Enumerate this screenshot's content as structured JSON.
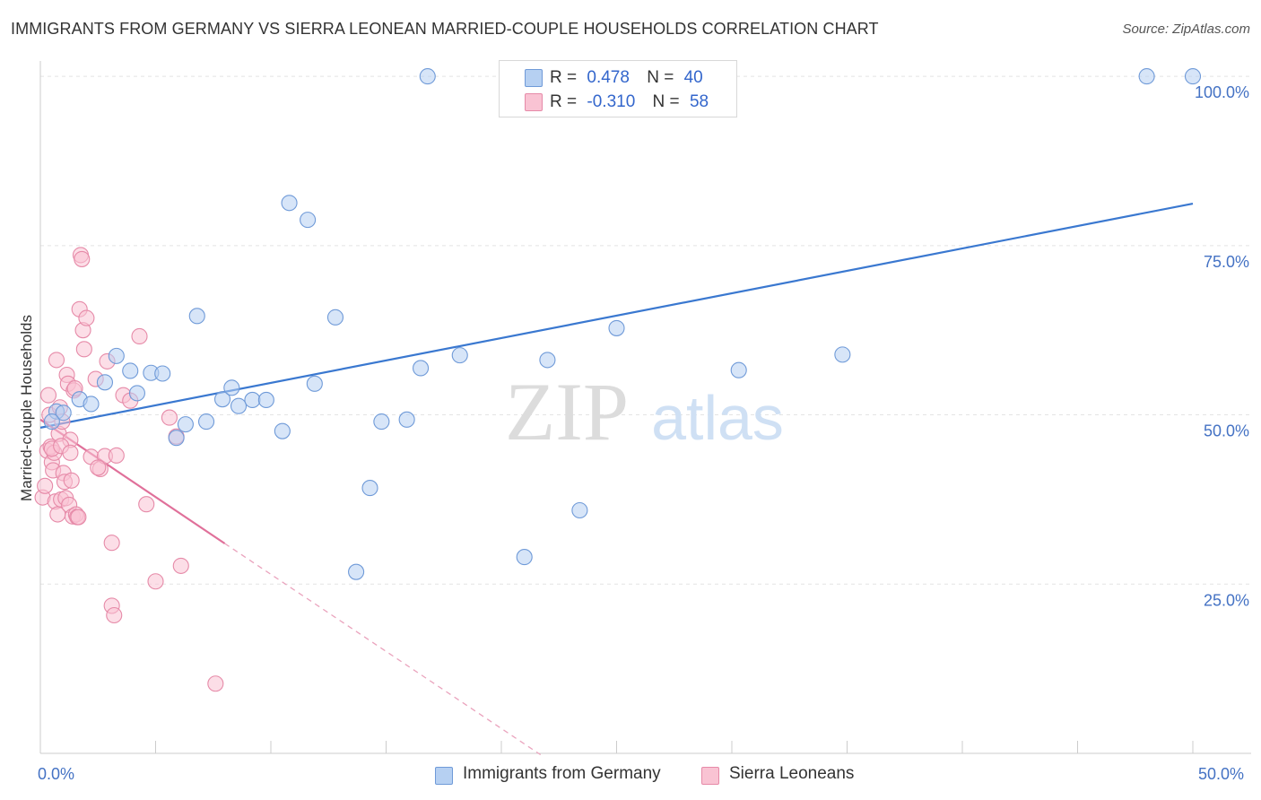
{
  "chart_data": {
    "type": "scatter",
    "title": "IMMIGRANTS FROM GERMANY VS SIERRA LEONEAN MARRIED-COUPLE HOUSEHOLDS CORRELATION CHART",
    "source": "Source: ZipAtlas.com",
    "xlabel": "",
    "ylabel": "Married-couple Households",
    "xlim": [
      0,
      50
    ],
    "ylim": [
      0,
      102
    ],
    "x_tick_labels": [
      "0.0%",
      "50.0%"
    ],
    "y_ticks": [
      25,
      50,
      75,
      100
    ],
    "y_tick_labels": [
      "25.0%",
      "50.0%",
      "75.0%",
      "100.0%"
    ],
    "watermark": {
      "zip": "ZIP",
      "atlas": "atlas"
    },
    "legend": {
      "rows": [
        {
          "r_label": "R =",
          "r_value": "0.478",
          "n_label": "N =",
          "n_value": "40"
        },
        {
          "r_label": "R =",
          "r_value": "-0.310",
          "n_label": "N =",
          "n_value": "58"
        }
      ]
    },
    "series": [
      {
        "name": "Immigrants from Germany",
        "color": "#6f9ad8",
        "fill": "#b6d0f2",
        "trend": {
          "x1": 0,
          "y1": 48.1,
          "x2": 50,
          "y2": 81.2
        },
        "points": [
          [
            0.7,
            50.5
          ],
          [
            1.0,
            50.3
          ],
          [
            1.7,
            52.3
          ],
          [
            2.2,
            51.6
          ],
          [
            2.8,
            54.8
          ],
          [
            3.3,
            58.7
          ],
          [
            3.9,
            56.5
          ],
          [
            4.2,
            53.2
          ],
          [
            4.8,
            56.2
          ],
          [
            5.3,
            56.1
          ],
          [
            5.9,
            46.6
          ],
          [
            6.3,
            48.6
          ],
          [
            6.8,
            64.6
          ],
          [
            7.2,
            49.0
          ],
          [
            7.9,
            52.3
          ],
          [
            8.3,
            54.0
          ],
          [
            8.6,
            51.3
          ],
          [
            9.2,
            52.2
          ],
          [
            9.8,
            52.2
          ],
          [
            10.5,
            47.6
          ],
          [
            10.8,
            81.3
          ],
          [
            11.6,
            78.8
          ],
          [
            11.9,
            54.6
          ],
          [
            12.8,
            64.4
          ],
          [
            13.7,
            26.8
          ],
          [
            14.3,
            39.2
          ],
          [
            14.8,
            49.0
          ],
          [
            15.9,
            49.3
          ],
          [
            16.5,
            56.9
          ],
          [
            16.8,
            100.0
          ],
          [
            18.2,
            58.8
          ],
          [
            21.0,
            29.0
          ],
          [
            22.0,
            58.1
          ],
          [
            23.4,
            35.9
          ],
          [
            25.0,
            62.8
          ],
          [
            30.3,
            56.6
          ],
          [
            34.8,
            58.9
          ],
          [
            48.0,
            100.0
          ],
          [
            50.0,
            100.0
          ],
          [
            0.5,
            49.0
          ]
        ]
      },
      {
        "name": "Sierra Leoneans",
        "color": "#e68aa8",
        "fill": "#f9c3d3",
        "trend": {
          "x1": 0,
          "y1": 49.3,
          "x2": 8.0,
          "y2": 31.0,
          "dash_x2": 21.7,
          "dash_y2": -0.2
        },
        "points": [
          [
            0.1,
            37.8
          ],
          [
            0.2,
            39.5
          ],
          [
            0.3,
            44.7
          ],
          [
            0.35,
            52.9
          ],
          [
            0.4,
            50.0
          ],
          [
            0.45,
            45.3
          ],
          [
            0.5,
            43.0
          ],
          [
            0.55,
            41.8
          ],
          [
            0.6,
            44.4
          ],
          [
            0.65,
            37.2
          ],
          [
            0.7,
            58.1
          ],
          [
            0.75,
            35.3
          ],
          [
            0.8,
            47.2
          ],
          [
            0.85,
            51.1
          ],
          [
            0.9,
            37.5
          ],
          [
            0.95,
            49.0
          ],
          [
            1.0,
            41.4
          ],
          [
            1.05,
            40.1
          ],
          [
            1.1,
            37.7
          ],
          [
            1.15,
            55.9
          ],
          [
            1.2,
            54.6
          ],
          [
            1.25,
            36.7
          ],
          [
            1.3,
            46.3
          ],
          [
            1.35,
            40.3
          ],
          [
            1.4,
            35.0
          ],
          [
            1.45,
            53.6
          ],
          [
            1.5,
            53.9
          ],
          [
            1.55,
            35.3
          ],
          [
            1.6,
            34.9
          ],
          [
            1.65,
            34.9
          ],
          [
            1.7,
            65.6
          ],
          [
            1.75,
            73.6
          ],
          [
            1.8,
            73.0
          ],
          [
            1.85,
            62.5
          ],
          [
            1.9,
            59.7
          ],
          [
            2.0,
            64.3
          ],
          [
            2.2,
            43.8
          ],
          [
            2.4,
            55.3
          ],
          [
            2.6,
            42.0
          ],
          [
            2.8,
            43.9
          ],
          [
            2.9,
            57.9
          ],
          [
            3.1,
            31.1
          ],
          [
            3.3,
            44.0
          ],
          [
            3.6,
            52.9
          ],
          [
            3.9,
            52.1
          ],
          [
            4.3,
            61.6
          ],
          [
            4.6,
            36.8
          ],
          [
            5.0,
            25.4
          ],
          [
            5.6,
            49.6
          ],
          [
            5.9,
            46.8
          ],
          [
            6.1,
            27.7
          ],
          [
            3.1,
            21.8
          ],
          [
            3.2,
            20.4
          ],
          [
            7.6,
            10.3
          ],
          [
            0.5,
            45.0
          ],
          [
            0.9,
            45.4
          ],
          [
            1.3,
            44.4
          ],
          [
            2.5,
            42.2
          ]
        ]
      }
    ]
  }
}
